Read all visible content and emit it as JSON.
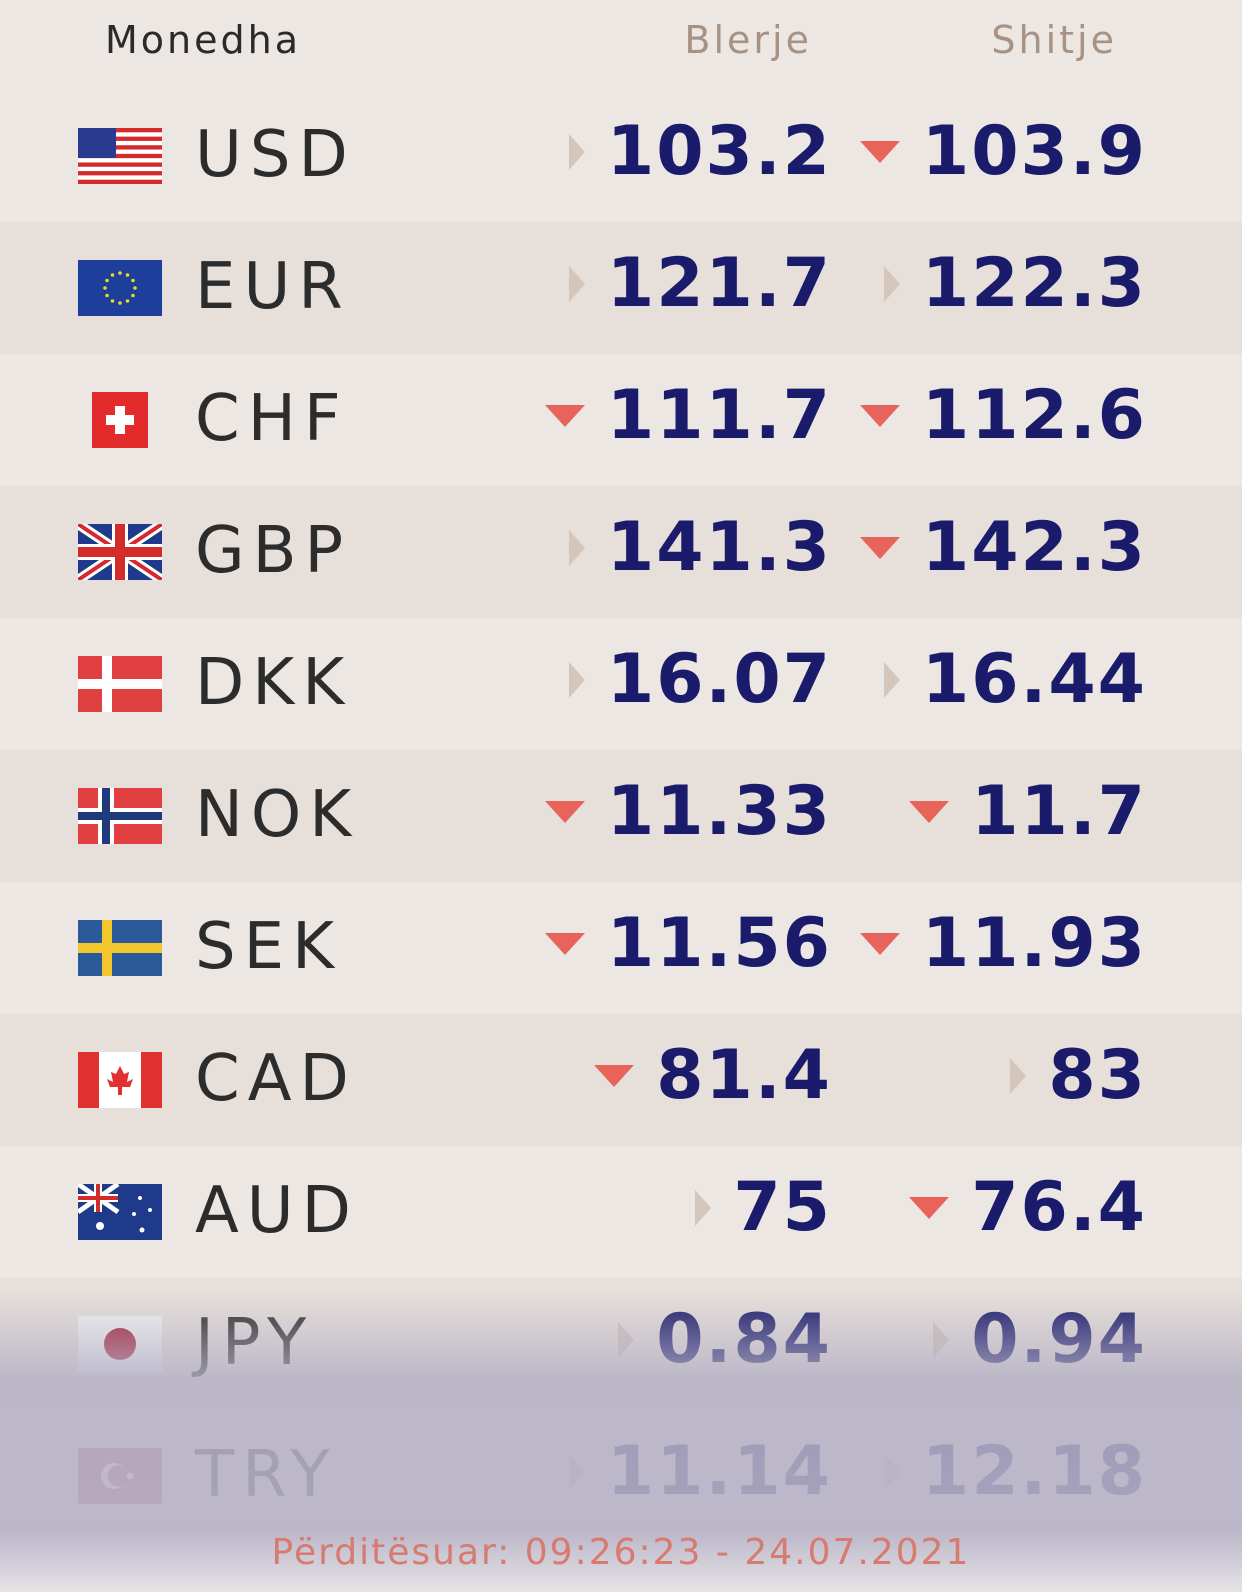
{
  "header": {
    "currency": "Monedha",
    "buy": "Blerje",
    "sell": "Shitje"
  },
  "colors": {
    "value": "#1a1b6b",
    "down": "#e8645a",
    "neutral": "#d5c6bb"
  },
  "rows": [
    {
      "code": "USD",
      "flag": "us-flag-icon",
      "buy": "103.2",
      "buy_trend": "flat",
      "sell": "103.9",
      "sell_trend": "down"
    },
    {
      "code": "EUR",
      "flag": "eu-flag-icon",
      "buy": "121.7",
      "buy_trend": "flat",
      "sell": "122.3",
      "sell_trend": "flat"
    },
    {
      "code": "CHF",
      "flag": "ch-flag-icon",
      "buy": "111.7",
      "buy_trend": "down",
      "sell": "112.6",
      "sell_trend": "down"
    },
    {
      "code": "GBP",
      "flag": "gb-flag-icon",
      "buy": "141.3",
      "buy_trend": "flat",
      "sell": "142.3",
      "sell_trend": "down"
    },
    {
      "code": "DKK",
      "flag": "dk-flag-icon",
      "buy": "16.07",
      "buy_trend": "flat",
      "sell": "16.44",
      "sell_trend": "flat"
    },
    {
      "code": "NOK",
      "flag": "no-flag-icon",
      "buy": "11.33",
      "buy_trend": "down",
      "sell": "11.7",
      "sell_trend": "down"
    },
    {
      "code": "SEK",
      "flag": "se-flag-icon",
      "buy": "11.56",
      "buy_trend": "down",
      "sell": "11.93",
      "sell_trend": "down"
    },
    {
      "code": "CAD",
      "flag": "ca-flag-icon",
      "buy": "81.4",
      "buy_trend": "down",
      "sell": "83",
      "sell_trend": "flat"
    },
    {
      "code": "AUD",
      "flag": "au-flag-icon",
      "buy": "75",
      "buy_trend": "flat",
      "sell": "76.4",
      "sell_trend": "down"
    },
    {
      "code": "JPY",
      "flag": "jp-flag-icon",
      "buy": "0.84",
      "buy_trend": "flat",
      "sell": "0.94",
      "sell_trend": "flat"
    },
    {
      "code": "TRY",
      "flag": "tr-flag-icon",
      "buy": "11.14",
      "buy_trend": "flat",
      "sell": "12.18",
      "sell_trend": "flat"
    }
  ],
  "footer": {
    "updated": "Përditësuar: 09:26:23 - 24.07.2021"
  }
}
